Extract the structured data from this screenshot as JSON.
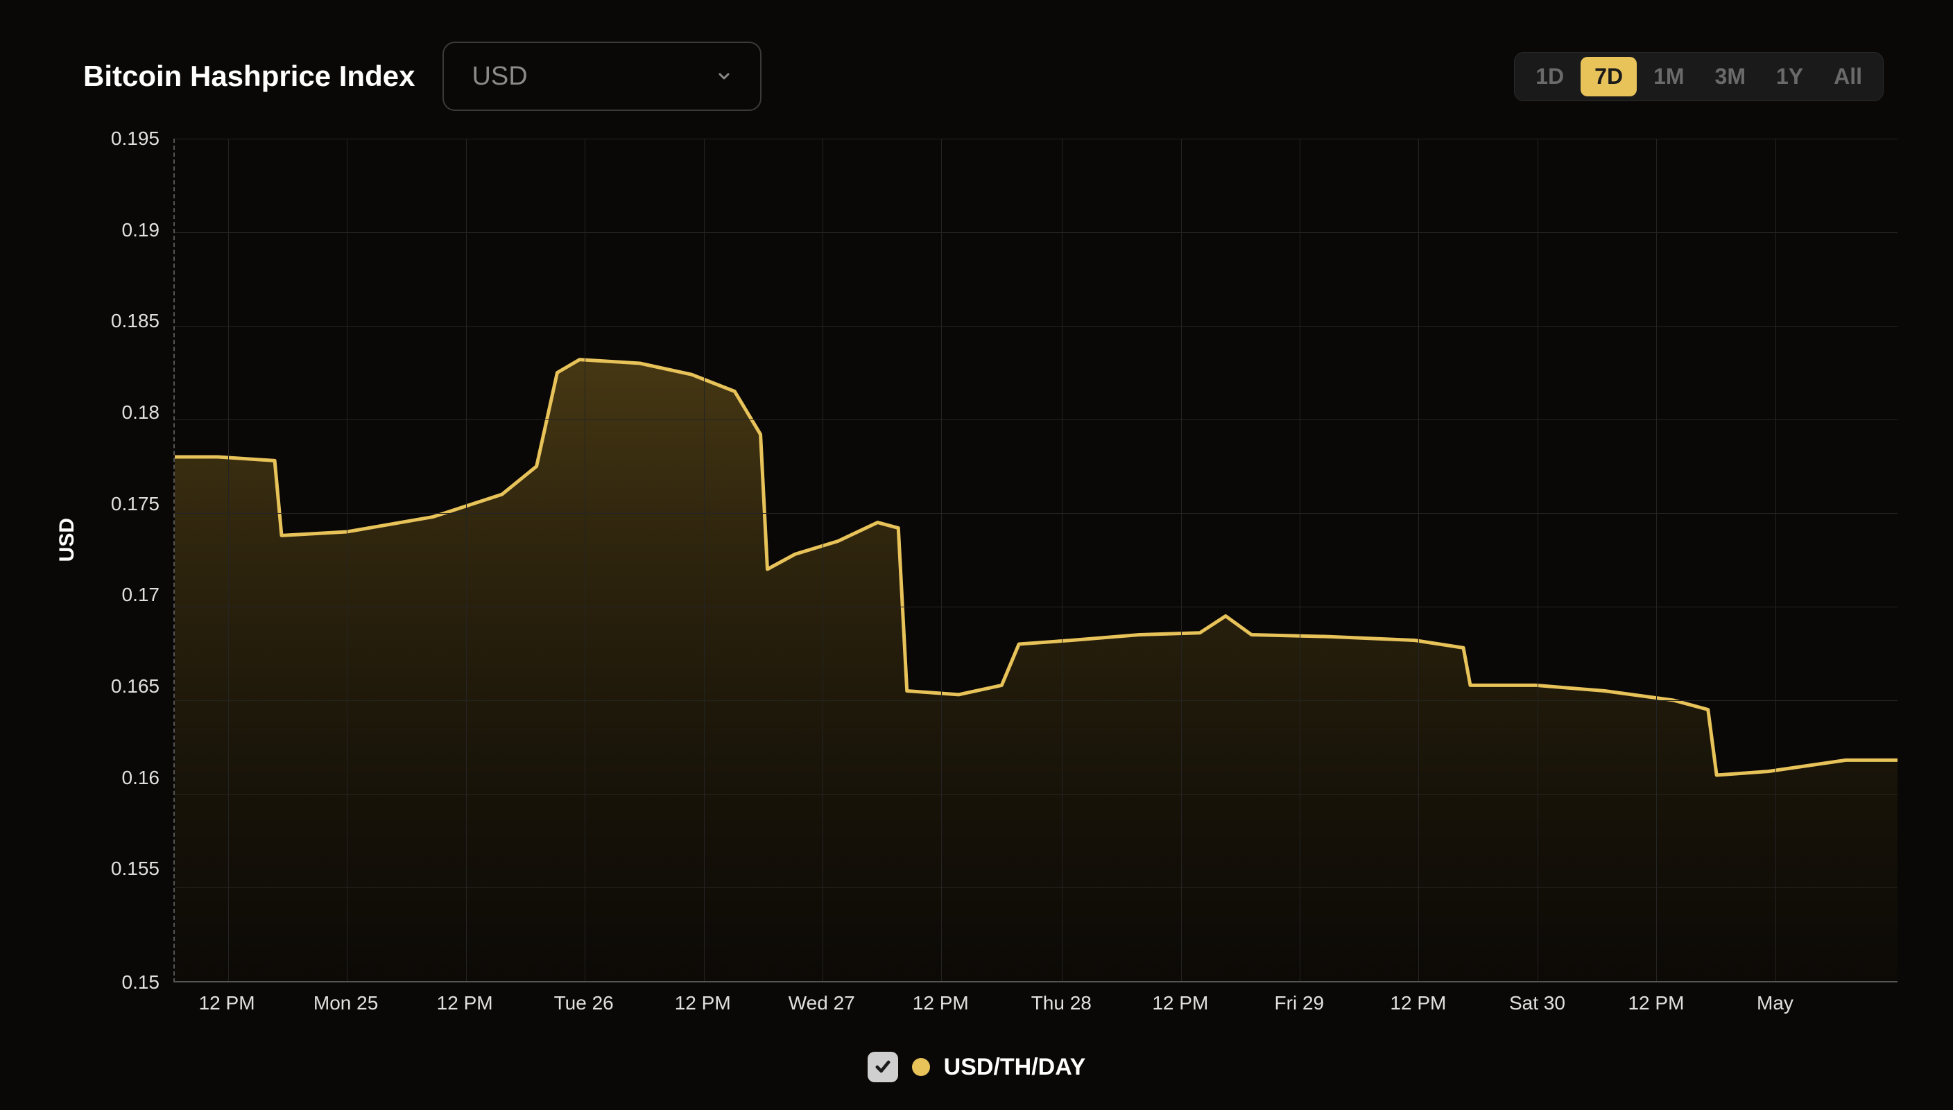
{
  "title": "Bitcoin Hashprice Index",
  "currency_select": {
    "value": "USD"
  },
  "ranges": {
    "options": [
      "1D",
      "7D",
      "1M",
      "3M",
      "1Y",
      "All"
    ],
    "active": "7D"
  },
  "chart": {
    "type": "area",
    "y_axis_label": "USD",
    "line_color": "#e8c35a",
    "line_width": 5,
    "fill_top_color": "rgba(120,95,30,0.55)",
    "fill_bottom_color": "rgba(60,48,15,0.05)",
    "background_color": "#0a0806",
    "grid_color": "#242424",
    "axis_color": "#555555",
    "tick_font_size": 28,
    "tick_color": "#e0e0e0",
    "ylim": [
      0.15,
      0.195
    ],
    "y_ticks": [
      0.195,
      0.19,
      0.185,
      0.18,
      0.175,
      0.17,
      0.165,
      0.16,
      0.155,
      0.15
    ],
    "x_ticks": [
      {
        "pos": 0.031,
        "label": "12 PM"
      },
      {
        "pos": 0.1,
        "label": "Mon 25"
      },
      {
        "pos": 0.169,
        "label": "12 PM"
      },
      {
        "pos": 0.238,
        "label": "Tue 26"
      },
      {
        "pos": 0.307,
        "label": "12 PM"
      },
      {
        "pos": 0.376,
        "label": "Wed 27"
      },
      {
        "pos": 0.445,
        "label": "12 PM"
      },
      {
        "pos": 0.515,
        "label": "Thu 28"
      },
      {
        "pos": 0.584,
        "label": "12 PM"
      },
      {
        "pos": 0.653,
        "label": "Fri 29"
      },
      {
        "pos": 0.722,
        "label": "12 PM"
      },
      {
        "pos": 0.791,
        "label": "Sat 30"
      },
      {
        "pos": 0.86,
        "label": "12 PM"
      },
      {
        "pos": 0.929,
        "label": "May"
      }
    ],
    "series": [
      {
        "x": 0.0,
        "y": 0.178
      },
      {
        "x": 0.025,
        "y": 0.178
      },
      {
        "x": 0.058,
        "y": 0.1778
      },
      {
        "x": 0.062,
        "y": 0.1738
      },
      {
        "x": 0.1,
        "y": 0.174
      },
      {
        "x": 0.15,
        "y": 0.1748
      },
      {
        "x": 0.19,
        "y": 0.176
      },
      {
        "x": 0.21,
        "y": 0.1775
      },
      {
        "x": 0.222,
        "y": 0.1825
      },
      {
        "x": 0.235,
        "y": 0.1832
      },
      {
        "x": 0.27,
        "y": 0.183
      },
      {
        "x": 0.3,
        "y": 0.1824
      },
      {
        "x": 0.325,
        "y": 0.1815
      },
      {
        "x": 0.34,
        "y": 0.1792
      },
      {
        "x": 0.344,
        "y": 0.172
      },
      {
        "x": 0.36,
        "y": 0.1728
      },
      {
        "x": 0.385,
        "y": 0.1735
      },
      {
        "x": 0.408,
        "y": 0.1745
      },
      {
        "x": 0.42,
        "y": 0.1742
      },
      {
        "x": 0.425,
        "y": 0.1655
      },
      {
        "x": 0.455,
        "y": 0.1653
      },
      {
        "x": 0.48,
        "y": 0.1658
      },
      {
        "x": 0.49,
        "y": 0.168
      },
      {
        "x": 0.52,
        "y": 0.1682
      },
      {
        "x": 0.56,
        "y": 0.1685
      },
      {
        "x": 0.595,
        "y": 0.1686
      },
      {
        "x": 0.61,
        "y": 0.1695
      },
      {
        "x": 0.625,
        "y": 0.1685
      },
      {
        "x": 0.67,
        "y": 0.1684
      },
      {
        "x": 0.72,
        "y": 0.1682
      },
      {
        "x": 0.748,
        "y": 0.1678
      },
      {
        "x": 0.752,
        "y": 0.1658
      },
      {
        "x": 0.79,
        "y": 0.1658
      },
      {
        "x": 0.83,
        "y": 0.1655
      },
      {
        "x": 0.87,
        "y": 0.165
      },
      {
        "x": 0.89,
        "y": 0.1645
      },
      {
        "x": 0.895,
        "y": 0.161
      },
      {
        "x": 0.925,
        "y": 0.1612
      },
      {
        "x": 0.97,
        "y": 0.1618
      },
      {
        "x": 1.0,
        "y": 0.1618
      }
    ]
  },
  "legend": {
    "checked": true,
    "dot_color": "#e8c35a",
    "label": "USD/TH/DAY"
  }
}
